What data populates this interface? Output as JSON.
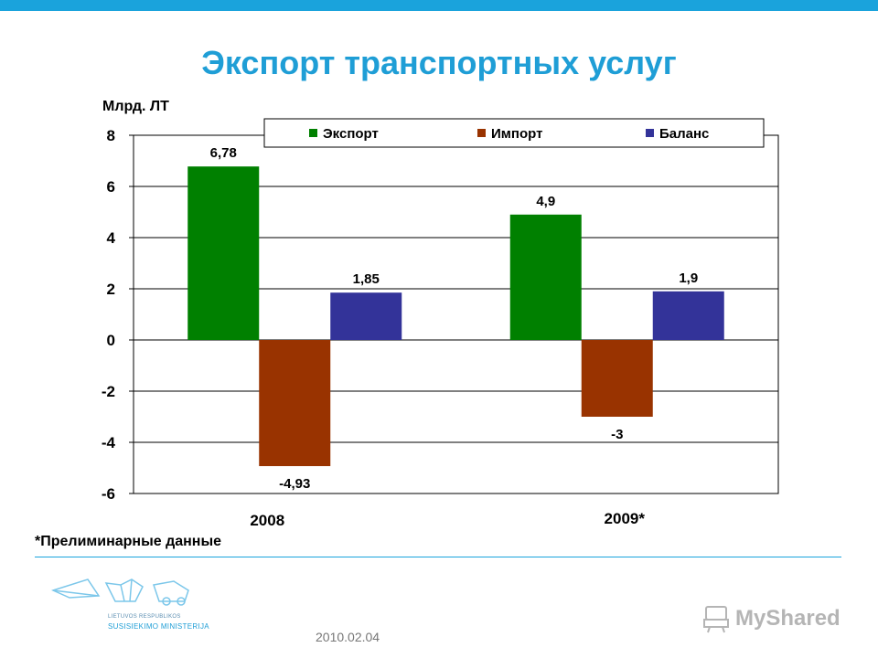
{
  "title": "Экспорт транспортных услуг",
  "unit_label": "Млрд. ЛТ",
  "footnote": "*Прелиминарные данные",
  "date": "2010.02.04",
  "ministry": {
    "line1": "LIETUVOS RESPUBLIKOS",
    "line2": "SUSISIEKIMO MINISTERIJA"
  },
  "watermark": "MyShared",
  "colors": {
    "accent": "#1aa3dc",
    "title": "#1f9ed6"
  },
  "chart_data": {
    "type": "bar",
    "categories": [
      "2008",
      "2009*"
    ],
    "series": [
      {
        "name": "Экспорт",
        "color": "#008000",
        "values": [
          6.78,
          4.9
        ],
        "labels": [
          "6,78",
          "4,9"
        ]
      },
      {
        "name": "Импорт",
        "color": "#993300",
        "values": [
          -4.93,
          -3
        ],
        "labels": [
          "-4,93",
          "-3"
        ]
      },
      {
        "name": "Баланс",
        "color": "#333399",
        "values": [
          1.85,
          1.9
        ],
        "labels": [
          "1,85",
          "1,9"
        ]
      }
    ],
    "ylabel": "Млрд. ЛТ",
    "ylim": [
      -6,
      8
    ],
    "yticks": [
      -6,
      -4,
      -2,
      0,
      2,
      4,
      6,
      8
    ],
    "grid": true,
    "legend_position": "top"
  }
}
